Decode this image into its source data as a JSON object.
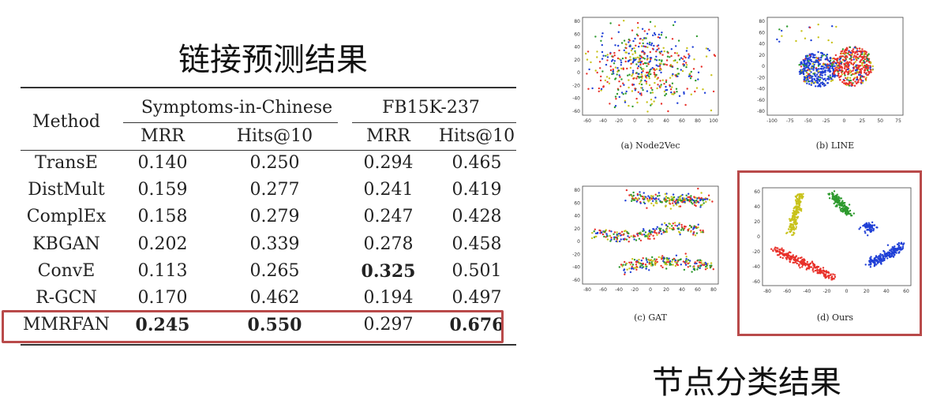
{
  "headings": {
    "link_prediction": "链接预测结果",
    "node_classification": "节点分类结果"
  },
  "table": {
    "method_header": "Method",
    "groups": [
      "Symptoms-in-Chinese",
      "FB15K-237"
    ],
    "metrics": [
      "MRR",
      "Hits@10",
      "MRR",
      "Hits@10"
    ],
    "rows": [
      {
        "method": "TransE",
        "values": [
          "0.140",
          "0.250",
          "0.294",
          "0.465"
        ],
        "bold": [
          false,
          false,
          false,
          false
        ]
      },
      {
        "method": "DistMult",
        "values": [
          "0.159",
          "0.277",
          "0.241",
          "0.419"
        ],
        "bold": [
          false,
          false,
          false,
          false
        ]
      },
      {
        "method": "ComplEx",
        "values": [
          "0.158",
          "0.279",
          "0.247",
          "0.428"
        ],
        "bold": [
          false,
          false,
          false,
          false
        ]
      },
      {
        "method": "KBGAN",
        "values": [
          "0.202",
          "0.339",
          "0.278",
          "0.458"
        ],
        "bold": [
          false,
          false,
          false,
          false
        ]
      },
      {
        "method": "ConvE",
        "values": [
          "0.113",
          "0.265",
          "0.325",
          "0.501"
        ],
        "bold": [
          false,
          false,
          true,
          false
        ]
      },
      {
        "method": "R-GCN",
        "values": [
          "0.170",
          "0.462",
          "0.194",
          "0.497"
        ],
        "bold": [
          false,
          false,
          false,
          false
        ]
      },
      {
        "method": "MMRFAN",
        "values": [
          "0.245",
          "0.550",
          "0.297",
          "0.676"
        ],
        "bold": [
          true,
          true,
          false,
          true
        ]
      }
    ],
    "highlight_row": "MMRFAN"
  },
  "colors": {
    "red": "#e8312a",
    "green": "#2e9a2e",
    "blue": "#1f3fd6",
    "yellow": "#c8c21a",
    "highlight": "#b94a4a"
  },
  "panels": [
    {
      "caption": "(a) Node2Vec",
      "xticks": [
        "-60",
        "-40",
        "-20",
        "0",
        "20",
        "40",
        "60",
        "80",
        "100"
      ],
      "yticks": [
        "80",
        "60",
        "40",
        "20",
        "0",
        "-20",
        "-40",
        "-60"
      ]
    },
    {
      "caption": "(b) LINE",
      "xticks": [
        "-100",
        "-75",
        "-50",
        "-25",
        "0",
        "25",
        "50",
        "75"
      ],
      "yticks": [
        "80",
        "60",
        "40",
        "20",
        "0",
        "-20",
        "-40",
        "-60",
        "-80"
      ]
    },
    {
      "caption": "(c) GAT",
      "xticks": [
        "-80",
        "-60",
        "-40",
        "-20",
        "0",
        "20",
        "40",
        "60",
        "80"
      ],
      "yticks": [
        "80",
        "60",
        "40",
        "20",
        "0",
        "-20",
        "-40",
        "-60"
      ]
    },
    {
      "caption": "(d) Ours",
      "xticks": [
        "-80",
        "-60",
        "-40",
        "-20",
        "0",
        "20",
        "40",
        "60"
      ],
      "yticks": [
        "60",
        "40",
        "20",
        "0",
        "-20",
        "-40",
        "-60"
      ]
    }
  ]
}
